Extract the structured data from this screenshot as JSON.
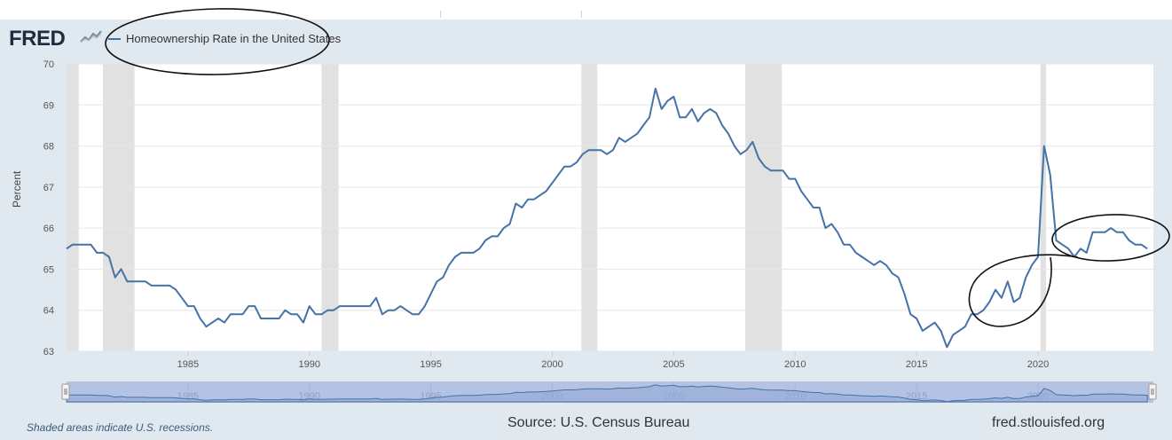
{
  "brand": "FRED",
  "chart_data": {
    "type": "line",
    "title": "Homeownership Rate in the United States",
    "xlabel": "",
    "ylabel": "Percent",
    "xlim": [
      1980.0,
      2024.75
    ],
    "ylim": [
      63,
      70
    ],
    "yticks": [
      63,
      64,
      65,
      66,
      67,
      68,
      69,
      70
    ],
    "xticks": [
      1985,
      1990,
      1995,
      2000,
      2005,
      2010,
      2015,
      2020
    ],
    "navigator_ticks": [
      "1985",
      "1990",
      "1995",
      "2000",
      "2005",
      "2010",
      "2015",
      "2020"
    ],
    "recessions": [
      [
        1980.0,
        1980.5
      ],
      [
        1981.5,
        1982.8
      ],
      [
        1990.5,
        1991.2
      ],
      [
        2001.2,
        2001.85
      ],
      [
        2007.95,
        2009.45
      ],
      [
        2020.1,
        2020.33
      ]
    ],
    "series": [
      {
        "name": "Homeownership Rate in the United States",
        "color": "#4572a7",
        "x": [
          1980.0,
          1980.25,
          1980.5,
          1980.75,
          1981.0,
          1981.25,
          1981.5,
          1981.75,
          1982.0,
          1982.25,
          1982.5,
          1982.75,
          1983.0,
          1983.25,
          1983.5,
          1983.75,
          1984.0,
          1984.25,
          1984.5,
          1984.75,
          1985.0,
          1985.25,
          1985.5,
          1985.75,
          1986.0,
          1986.25,
          1986.5,
          1986.75,
          1987.0,
          1987.25,
          1987.5,
          1987.75,
          1988.0,
          1988.25,
          1988.5,
          1988.75,
          1989.0,
          1989.25,
          1989.5,
          1989.75,
          1990.0,
          1990.25,
          1990.5,
          1990.75,
          1991.0,
          1991.25,
          1991.5,
          1991.75,
          1992.0,
          1992.25,
          1992.5,
          1992.75,
          1993.0,
          1993.25,
          1993.5,
          1993.75,
          1994.0,
          1994.25,
          1994.5,
          1994.75,
          1995.0,
          1995.25,
          1995.5,
          1995.75,
          1996.0,
          1996.25,
          1996.5,
          1996.75,
          1997.0,
          1997.25,
          1997.5,
          1997.75,
          1998.0,
          1998.25,
          1998.5,
          1998.75,
          1999.0,
          1999.25,
          1999.5,
          1999.75,
          2000.0,
          2000.25,
          2000.5,
          2000.75,
          2001.0,
          2001.25,
          2001.5,
          2001.75,
          2002.0,
          2002.25,
          2002.5,
          2002.75,
          2003.0,
          2003.25,
          2003.5,
          2003.75,
          2004.0,
          2004.25,
          2004.5,
          2004.75,
          2005.0,
          2005.25,
          2005.5,
          2005.75,
          2006.0,
          2006.25,
          2006.5,
          2006.75,
          2007.0,
          2007.25,
          2007.5,
          2007.75,
          2008.0,
          2008.25,
          2008.5,
          2008.75,
          2009.0,
          2009.25,
          2009.5,
          2009.75,
          2010.0,
          2010.25,
          2010.5,
          2010.75,
          2011.0,
          2011.25,
          2011.5,
          2011.75,
          2012.0,
          2012.25,
          2012.5,
          2012.75,
          2013.0,
          2013.25,
          2013.5,
          2013.75,
          2014.0,
          2014.25,
          2014.5,
          2014.75,
          2015.0,
          2015.25,
          2015.5,
          2015.75,
          2016.0,
          2016.25,
          2016.5,
          2016.75,
          2017.0,
          2017.25,
          2017.5,
          2017.75,
          2018.0,
          2018.25,
          2018.5,
          2018.75,
          2019.0,
          2019.25,
          2019.5,
          2019.75,
          2020.0,
          2020.25,
          2020.5,
          2020.75,
          2021.0,
          2021.25,
          2021.5,
          2021.75,
          2022.0,
          2022.25,
          2022.5,
          2022.75,
          2023.0,
          2023.25,
          2023.5,
          2023.75,
          2024.0,
          2024.25,
          2024.5
        ],
        "values": [
          65.5,
          65.6,
          65.6,
          65.6,
          65.6,
          65.4,
          65.4,
          65.3,
          64.8,
          65.0,
          64.7,
          64.7,
          64.7,
          64.7,
          64.6,
          64.6,
          64.6,
          64.6,
          64.5,
          64.3,
          64.1,
          64.1,
          63.8,
          63.6,
          63.7,
          63.8,
          63.7,
          63.9,
          63.9,
          63.9,
          64.1,
          64.1,
          63.8,
          63.8,
          63.8,
          63.8,
          64.0,
          63.9,
          63.9,
          63.7,
          64.1,
          63.9,
          63.9,
          64.0,
          64.0,
          64.1,
          64.1,
          64.1,
          64.1,
          64.1,
          64.1,
          64.3,
          63.9,
          64.0,
          64.0,
          64.1,
          64.0,
          63.9,
          63.9,
          64.1,
          64.4,
          64.7,
          64.8,
          65.1,
          65.3,
          65.4,
          65.4,
          65.4,
          65.5,
          65.7,
          65.8,
          65.8,
          66.0,
          66.1,
          66.6,
          66.5,
          66.7,
          66.7,
          66.8,
          66.9,
          67.1,
          67.3,
          67.5,
          67.5,
          67.6,
          67.8,
          67.9,
          67.9,
          67.9,
          67.8,
          67.9,
          68.2,
          68.1,
          68.2,
          68.3,
          68.5,
          68.7,
          69.4,
          68.9,
          69.1,
          69.2,
          68.7,
          68.7,
          68.9,
          68.6,
          68.8,
          68.9,
          68.8,
          68.5,
          68.3,
          68.0,
          67.8,
          67.9,
          68.1,
          67.7,
          67.5,
          67.4,
          67.4,
          67.4,
          67.2,
          67.2,
          66.9,
          66.7,
          66.5,
          66.5,
          66.0,
          66.1,
          65.9,
          65.6,
          65.6,
          65.4,
          65.3,
          65.2,
          65.1,
          65.2,
          65.1,
          64.9,
          64.8,
          64.4,
          63.9,
          63.8,
          63.5,
          63.6,
          63.7,
          63.5,
          63.1,
          63.4,
          63.5,
          63.6,
          63.9,
          63.9,
          64.0,
          64.2,
          64.5,
          64.3,
          64.7,
          64.2,
          64.3,
          64.8,
          65.1,
          65.3,
          68.0,
          67.3,
          65.7,
          65.6,
          65.5,
          65.3,
          65.5,
          65.4,
          65.9,
          65.9,
          65.9,
          66.0,
          65.9,
          65.9,
          65.7,
          65.6,
          65.6,
          65.5
        ]
      }
    ]
  },
  "footer": {
    "note": "Shaded areas indicate U.S. recessions.",
    "source": "Source: U.S. Census Bureau",
    "url": "fred.stlouisfed.org"
  }
}
